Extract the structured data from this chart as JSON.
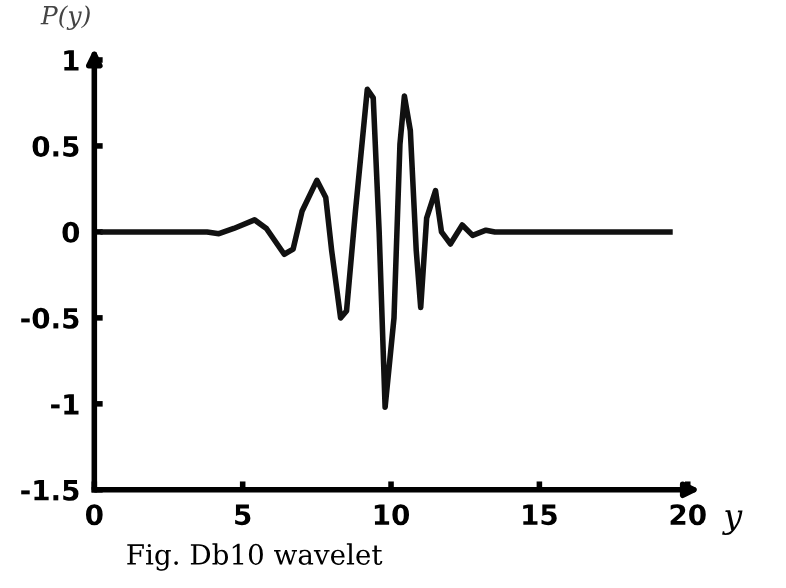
{
  "chart_data": {
    "type": "line",
    "xlabel": "y",
    "ylabel": "P(y)",
    "annotations": [
      "Fig. Db10 wavelet"
    ],
    "color": "#111111",
    "grid": false,
    "marker": "none",
    "line_style": "solid",
    "x": [
      0.3,
      3.8,
      4.2,
      4.7,
      5.4,
      5.8,
      6.4,
      6.7,
      7.0,
      7.5,
      7.8,
      8.0,
      8.3,
      8.5,
      8.8,
      9.2,
      9.4,
      9.6,
      9.8,
      10.1,
      10.3,
      10.45,
      10.65,
      10.85,
      11.0,
      11.2,
      11.5,
      11.7,
      12.0,
      12.4,
      12.75,
      13.2,
      13.5,
      19.4
    ],
    "values": [
      0,
      0,
      -0.01,
      0.02,
      0.07,
      0.02,
      -0.13,
      -0.1,
      0.12,
      0.3,
      0.2,
      -0.11,
      -0.5,
      -0.46,
      0.12,
      0.83,
      0.78,
      0,
      -1.02,
      -0.5,
      0.51,
      0.79,
      0.59,
      -0.11,
      -0.44,
      0.08,
      0.24,
      0,
      -0.07,
      0.04,
      -0.02,
      0.01,
      0,
      0
    ],
    "xlim": [
      0,
      20
    ],
    "ylim": [
      -1.5,
      1
    ],
    "xticks": [
      0,
      5,
      10,
      15,
      20
    ],
    "yticks": [
      -1.5,
      -1,
      -0.5,
      0,
      0.5,
      1
    ]
  }
}
